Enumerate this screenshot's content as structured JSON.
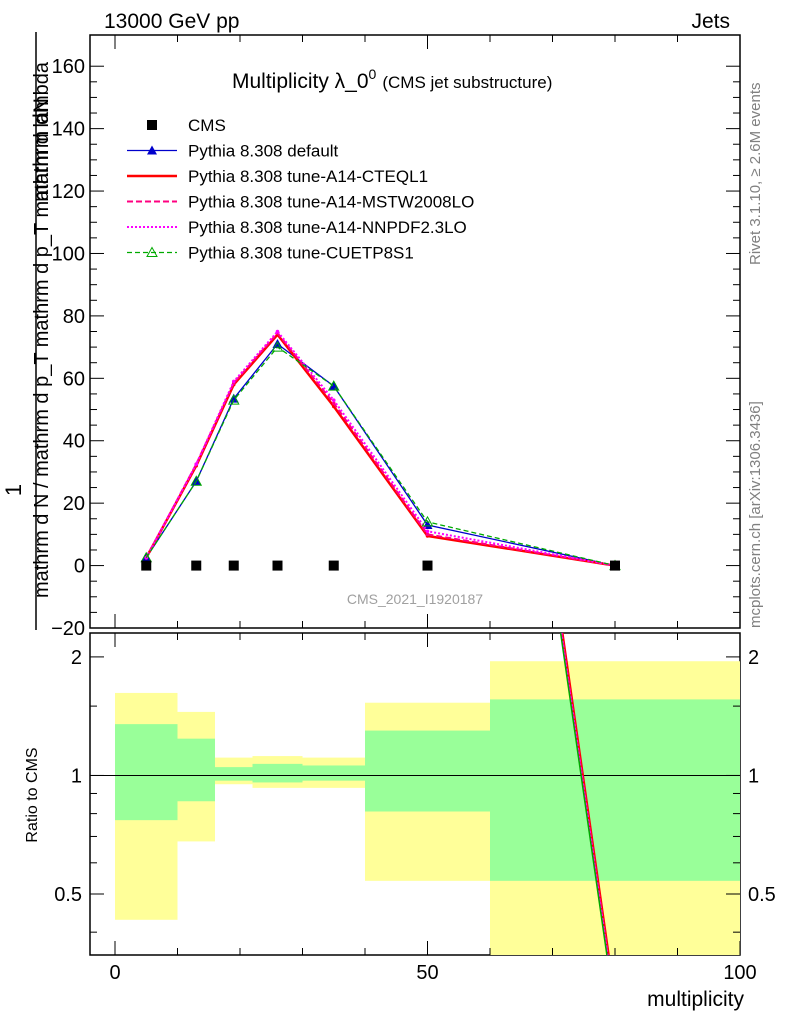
{
  "header": {
    "left": "13000 GeV pp",
    "right": "Jets"
  },
  "title": {
    "main": "Multiplicity λ_0",
    "superscript": "0",
    "sub": "(CMS jet substructure)"
  },
  "side_labels": {
    "rivet": "Rivet 3.1.10, ≥ 2.6M events",
    "mcplots": "mcplots.cern.ch [arXiv:1306.3436]"
  },
  "watermark": "CMS_2021_I1920187",
  "axis_labels": {
    "y_main_one": "1",
    "y_main_num": "mathrm dN",
    "y_main_den": "mathrm d N / mathrm d p_T mathrm d p_T mathrm d lambda",
    "y_ratio": "Ratio to CMS",
    "x": "multiplicity"
  },
  "chart_data": [
    {
      "type": "line",
      "panel": "main",
      "xlim": [
        -4,
        100
      ],
      "ylim": [
        -20,
        170
      ],
      "yticks": [
        -20,
        0,
        20,
        40,
        60,
        80,
        100,
        120,
        140,
        160
      ],
      "ytick_labels": [
        "−20",
        "0",
        "20",
        "40",
        "60",
        "80",
        "100",
        "120",
        "140",
        "160"
      ],
      "legend_position": "top-left",
      "series": [
        {
          "name": "CMS",
          "color": "#000000",
          "style": "marker-square",
          "x": [
            5,
            13,
            19,
            26,
            35,
            50,
            80
          ],
          "y": [
            0,
            0,
            0,
            0,
            0,
            0,
            0
          ]
        },
        {
          "name": "Pythia 8.308 default",
          "color": "#0000cc",
          "style": "solid-triangle",
          "x": [
            5,
            13,
            19,
            26,
            35,
            50,
            80
          ],
          "y": [
            2.5,
            27,
            53.5,
            71,
            57.5,
            13,
            0
          ]
        },
        {
          "name": "Pythia 8.308 tune-A14-CTEQL1",
          "color": "#ff0000",
          "style": "solid-thick",
          "x": [
            5,
            13,
            19,
            26,
            35,
            50,
            80
          ],
          "y": [
            2.5,
            32,
            58,
            74,
            51,
            9.5,
            0
          ]
        },
        {
          "name": "Pythia 8.308 tune-A14-MSTW2008LO",
          "color": "#ff0080",
          "style": "dashed",
          "x": [
            5,
            13,
            19,
            26,
            35,
            50,
            80
          ],
          "y": [
            2.5,
            32.5,
            58.5,
            74.5,
            52,
            10,
            0
          ]
        },
        {
          "name": "Pythia 8.308 tune-A14-NNPDF2.3LO",
          "color": "#ff00ff",
          "style": "dotted",
          "x": [
            5,
            13,
            19,
            26,
            35,
            50,
            80
          ],
          "y": [
            2.5,
            32.5,
            59,
            75,
            53,
            11,
            0
          ]
        },
        {
          "name": "Pythia 8.308 tune-CUETP8S1",
          "color": "#00aa00",
          "style": "dashed-open-triangle",
          "x": [
            5,
            13,
            19,
            26,
            35,
            50,
            80
          ],
          "y": [
            2.5,
            27,
            53,
            70,
            57.5,
            14,
            0
          ]
        }
      ]
    },
    {
      "type": "area",
      "panel": "ratio",
      "xlim": [
        -4,
        100
      ],
      "ylim": [
        0.35,
        2.3
      ],
      "yticks": [
        0.5,
        1,
        2
      ],
      "ytick_labels": [
        "0.5",
        "1",
        "2"
      ],
      "xticks": [
        0,
        50,
        100
      ],
      "xtick_labels": [
        "0",
        "50",
        "100"
      ],
      "bands": [
        {
          "x": [
            0,
            10
          ],
          "outer": [
            0.43,
            1.62
          ],
          "inner": [
            0.77,
            1.35
          ]
        },
        {
          "x": [
            10,
            16
          ],
          "outer": [
            0.68,
            1.45
          ],
          "inner": [
            0.86,
            1.24
          ]
        },
        {
          "x": [
            16,
            22
          ],
          "outer": [
            0.95,
            1.11
          ],
          "inner": [
            0.97,
            1.05
          ]
        },
        {
          "x": [
            22,
            30
          ],
          "outer": [
            0.93,
            1.12
          ],
          "inner": [
            0.96,
            1.07
          ]
        },
        {
          "x": [
            30,
            40
          ],
          "outer": [
            0.93,
            1.11
          ],
          "inner": [
            0.97,
            1.06
          ]
        },
        {
          "x": [
            40,
            60
          ],
          "outer": [
            0.54,
            1.53
          ],
          "inner": [
            0.81,
            1.3
          ]
        },
        {
          "x": [
            60,
            100
          ],
          "outer": [
            0.35,
            1.95
          ],
          "inner": [
            0.54,
            1.56
          ]
        }
      ],
      "series": [
        {
          "name": "Pythia 8.308 default",
          "color": "#0000cc",
          "x": [
            71.4,
            78.8
          ],
          "y": [
            2.3,
            0.35
          ]
        },
        {
          "name": "Pythia 8.308 tune-A14-CTEQL1",
          "color": "#ff0000",
          "x": [
            71.6,
            79.0
          ],
          "y": [
            2.3,
            0.35
          ]
        },
        {
          "name": "Pythia 8.308 tune-A14-MSTW2008LO",
          "color": "#ff0080",
          "x": [
            71.5,
            78.9
          ],
          "y": [
            2.3,
            0.35
          ]
        },
        {
          "name": "Pythia 8.308 tune-A14-NNPDF2.3LO",
          "color": "#ff00ff",
          "x": [
            71.45,
            78.85
          ],
          "y": [
            2.3,
            0.35
          ]
        },
        {
          "name": "Pythia 8.308 tune-CUETP8S1",
          "color": "#00aa00",
          "x": [
            71.3,
            78.7
          ],
          "y": [
            2.3,
            0.35
          ]
        }
      ],
      "band_colors": {
        "outer": "#ffff99",
        "inner": "#99ff99"
      }
    }
  ]
}
